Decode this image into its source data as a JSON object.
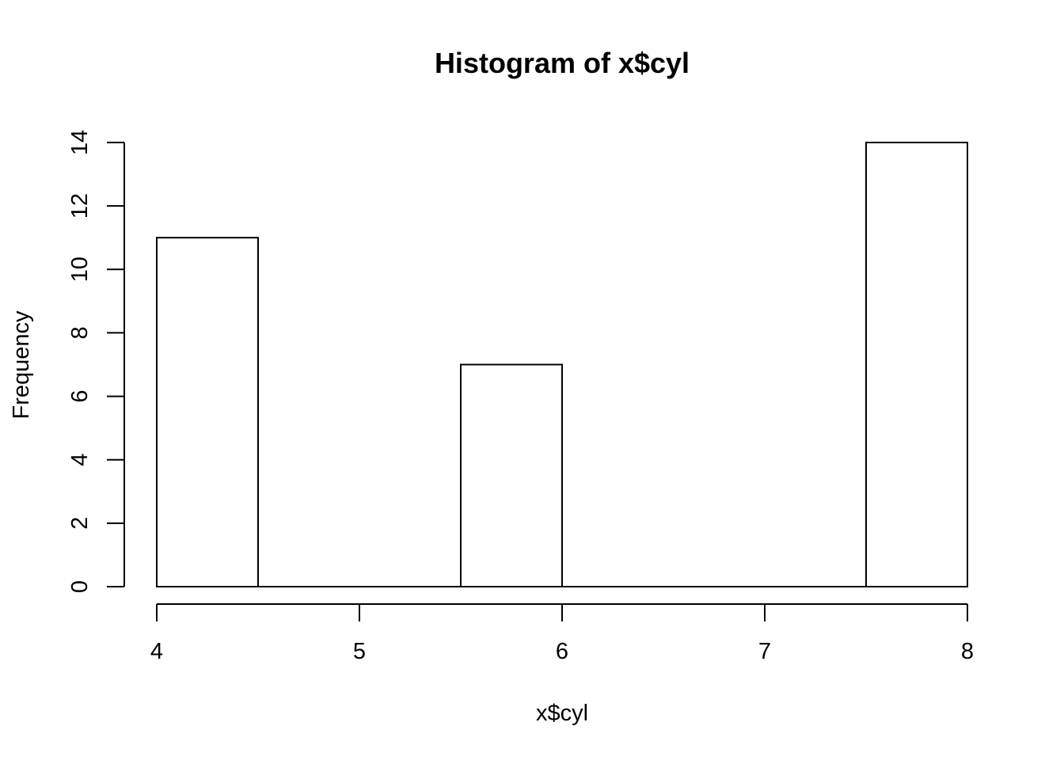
{
  "chart_data": {
    "type": "bar",
    "title": "Histogram of x$cyl",
    "xlabel": "x$cyl",
    "ylabel": "Frequency",
    "bins": [
      {
        "start": 4.0,
        "end": 4.5,
        "count": 11
      },
      {
        "start": 4.5,
        "end": 5.0,
        "count": 0
      },
      {
        "start": 5.0,
        "end": 5.5,
        "count": 0
      },
      {
        "start": 5.5,
        "end": 6.0,
        "count": 7
      },
      {
        "start": 6.0,
        "end": 6.5,
        "count": 0
      },
      {
        "start": 6.5,
        "end": 7.0,
        "count": 0
      },
      {
        "start": 7.0,
        "end": 7.5,
        "count": 0
      },
      {
        "start": 7.5,
        "end": 8.0,
        "count": 14
      }
    ],
    "xlim": [
      4,
      8
    ],
    "ylim": [
      0,
      14
    ],
    "x_ticks": [
      "4",
      "5",
      "6",
      "7",
      "8"
    ],
    "y_ticks": [
      "0",
      "2",
      "4",
      "6",
      "8",
      "10",
      "12",
      "14"
    ],
    "grid": false,
    "colors": {
      "bar_fill": "#ffffff",
      "bar_stroke": "#000000"
    }
  }
}
